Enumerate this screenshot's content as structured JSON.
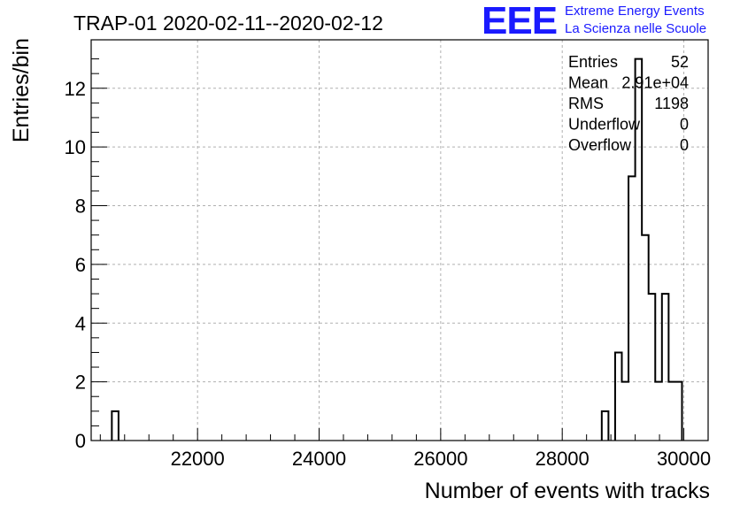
{
  "logo": {
    "mark": "EEE",
    "line1": "Extreme Energy Events",
    "line2": "La Scienza nelle Scuole",
    "color": "#1a1aff"
  },
  "chart_data": {
    "type": "histogram",
    "title": "TRAP-01 2020-02-11--2020-02-12",
    "xlabel": "Number of events with tracks",
    "ylabel": "Entries/bin",
    "xlim": [
      20250,
      30400
    ],
    "ylim": [
      0,
      13.65
    ],
    "xticks": [
      22000,
      24000,
      26000,
      28000,
      30000
    ],
    "yticks": [
      0,
      2,
      4,
      6,
      8,
      10,
      12
    ],
    "grid": true,
    "bin_width": 110,
    "bins": [
      {
        "x0": 20590,
        "x1": 20700,
        "count": 1
      },
      {
        "x0": 28650,
        "x1": 28760,
        "count": 1
      },
      {
        "x0": 28870,
        "x1": 28980,
        "count": 3
      },
      {
        "x0": 28980,
        "x1": 29090,
        "count": 2
      },
      {
        "x0": 29090,
        "x1": 29200,
        "count": 9
      },
      {
        "x0": 29200,
        "x1": 29310,
        "count": 13
      },
      {
        "x0": 29310,
        "x1": 29420,
        "count": 7
      },
      {
        "x0": 29420,
        "x1": 29530,
        "count": 5
      },
      {
        "x0": 29530,
        "x1": 29640,
        "count": 2
      },
      {
        "x0": 29640,
        "x1": 29750,
        "count": 5
      },
      {
        "x0": 29750,
        "x1": 29860,
        "count": 2
      },
      {
        "x0": 29860,
        "x1": 29970,
        "count": 2
      }
    ],
    "stats": [
      {
        "label": "Entries",
        "value": "52"
      },
      {
        "label": "Mean",
        "value": "2.91e+04"
      },
      {
        "label": "RMS",
        "value": "1198"
      },
      {
        "label": "Underflow",
        "value": "0"
      },
      {
        "label": "Overflow",
        "value": "0"
      }
    ]
  }
}
